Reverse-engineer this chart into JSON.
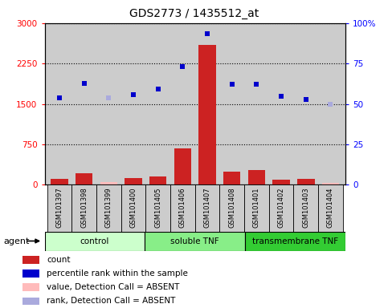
{
  "title": "GDS2773 / 1435512_at",
  "samples": [
    "GSM101397",
    "GSM101398",
    "GSM101399",
    "GSM101400",
    "GSM101405",
    "GSM101406",
    "GSM101407",
    "GSM101408",
    "GSM101401",
    "GSM101402",
    "GSM101403",
    "GSM101404"
  ],
  "groups": [
    {
      "name": "control",
      "color": "#ccffcc",
      "count": 4
    },
    {
      "name": "soluble TNF",
      "color": "#88ee88",
      "count": 4
    },
    {
      "name": "transmembrane TNF",
      "color": "#33cc33",
      "count": 4
    }
  ],
  "count_values": [
    110,
    220,
    50,
    120,
    160,
    680,
    2600,
    240,
    270,
    100,
    110,
    40
  ],
  "count_absent": [
    false,
    false,
    true,
    false,
    false,
    false,
    false,
    false,
    false,
    false,
    false,
    true
  ],
  "rank_values": [
    1620,
    1880,
    1620,
    1670,
    1770,
    2200,
    2800,
    1870,
    1870,
    1640,
    1580,
    1490
  ],
  "rank_absent": [
    false,
    false,
    true,
    false,
    false,
    false,
    false,
    false,
    false,
    false,
    false,
    true
  ],
  "left_ylim": [
    0,
    3000
  ],
  "right_ylim": [
    0,
    100
  ],
  "left_yticks": [
    0,
    750,
    1500,
    2250,
    3000
  ],
  "right_yticks": [
    0,
    25,
    50,
    75,
    100
  ],
  "right_yticklabels": [
    "0",
    "25",
    "50",
    "75",
    "100%"
  ],
  "bar_color_present": "#cc2222",
  "bar_color_absent": "#ffbbbb",
  "dot_color_present": "#0000cc",
  "dot_color_absent": "#aaaadd",
  "background_color": "#cccccc",
  "tick_box_color": "#cccccc",
  "agent_label": "agent"
}
